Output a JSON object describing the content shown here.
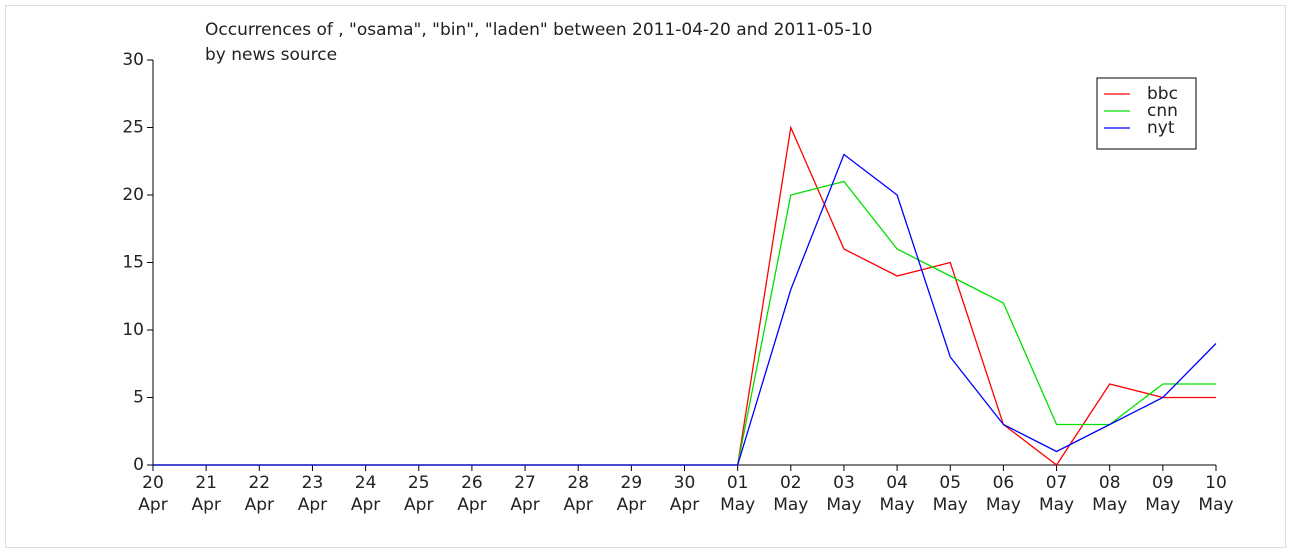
{
  "chart_data": {
    "type": "line",
    "title": "Occurrences of , \"osama\", \"bin\", \"laden\" between 2011-04-20 and 2011-05-10",
    "subtitle": "by news source",
    "categories": [
      [
        "20",
        "Apr"
      ],
      [
        "21",
        "Apr"
      ],
      [
        "22",
        "Apr"
      ],
      [
        "23",
        "Apr"
      ],
      [
        "24",
        "Apr"
      ],
      [
        "25",
        "Apr"
      ],
      [
        "26",
        "Apr"
      ],
      [
        "27",
        "Apr"
      ],
      [
        "28",
        "Apr"
      ],
      [
        "29",
        "Apr"
      ],
      [
        "30",
        "Apr"
      ],
      [
        "01",
        "May"
      ],
      [
        "02",
        "May"
      ],
      [
        "03",
        "May"
      ],
      [
        "04",
        "May"
      ],
      [
        "05",
        "May"
      ],
      [
        "06",
        "May"
      ],
      [
        "07",
        "May"
      ],
      [
        "08",
        "May"
      ],
      [
        "09",
        "May"
      ],
      [
        "10",
        "May"
      ]
    ],
    "series": [
      {
        "name": "bbc",
        "color": "#ff0000",
        "values": [
          0,
          0,
          0,
          0,
          0,
          0,
          0,
          0,
          0,
          0,
          0,
          0,
          25,
          16,
          14,
          15,
          3,
          0,
          6,
          5,
          5
        ]
      },
      {
        "name": "cnn",
        "color": "#00e000",
        "values": [
          0,
          0,
          0,
          0,
          0,
          0,
          0,
          0,
          0,
          0,
          0,
          0,
          20,
          21,
          16,
          14,
          12,
          3,
          3,
          6,
          6
        ]
      },
      {
        "name": "nyt",
        "color": "#0000ff",
        "values": [
          0,
          0,
          0,
          0,
          0,
          0,
          0,
          0,
          0,
          0,
          0,
          0,
          13,
          23,
          20,
          8,
          3,
          1,
          3,
          5,
          9
        ]
      }
    ],
    "ylim": [
      0,
      30
    ],
    "yticks": [
      0,
      5,
      10,
      15,
      20,
      25,
      30
    ],
    "legend": "upper right"
  }
}
